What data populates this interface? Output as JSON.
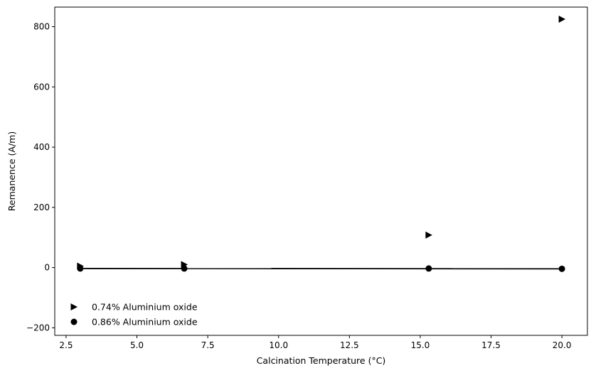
{
  "chart_data": {
    "type": "scatter",
    "title": "",
    "xlabel": "Calcination Temperature (°C)",
    "ylabel": "Remanence (A/m)",
    "xlim": [
      2.1,
      20.9
    ],
    "ylim": [
      -225,
      865
    ],
    "xticks": [
      2.5,
      5.0,
      7.5,
      10.0,
      12.5,
      15.0,
      17.5,
      20.0
    ],
    "xtick_labels": [
      "2.5",
      "5.0",
      "7.5",
      "10.0",
      "12.5",
      "15.0",
      "17.5",
      "20.0"
    ],
    "yticks": [
      -200,
      0,
      200,
      400,
      600,
      800
    ],
    "ytick_labels": [
      "−200",
      "0",
      "200",
      "400",
      "600",
      "800"
    ],
    "grid": false,
    "legend_placement": "lower-left",
    "series": [
      {
        "name": "0.74% Aluminium oxide",
        "marker": "triangle-right",
        "color": "#000000",
        "x": [
          3.0,
          6.67,
          15.3,
          20.0
        ],
        "y": [
          5,
          10,
          108,
          825
        ]
      },
      {
        "name": "0.86% Aluminium oxide",
        "marker": "circle",
        "color": "#000000",
        "x": [
          3.0,
          6.67,
          15.3,
          20.0
        ],
        "y": [
          -3,
          -3,
          -3,
          -4
        ]
      }
    ],
    "fit_line": {
      "color": "#000000",
      "x": [
        3.0,
        20.0
      ],
      "y": [
        -3,
        -4
      ]
    }
  }
}
